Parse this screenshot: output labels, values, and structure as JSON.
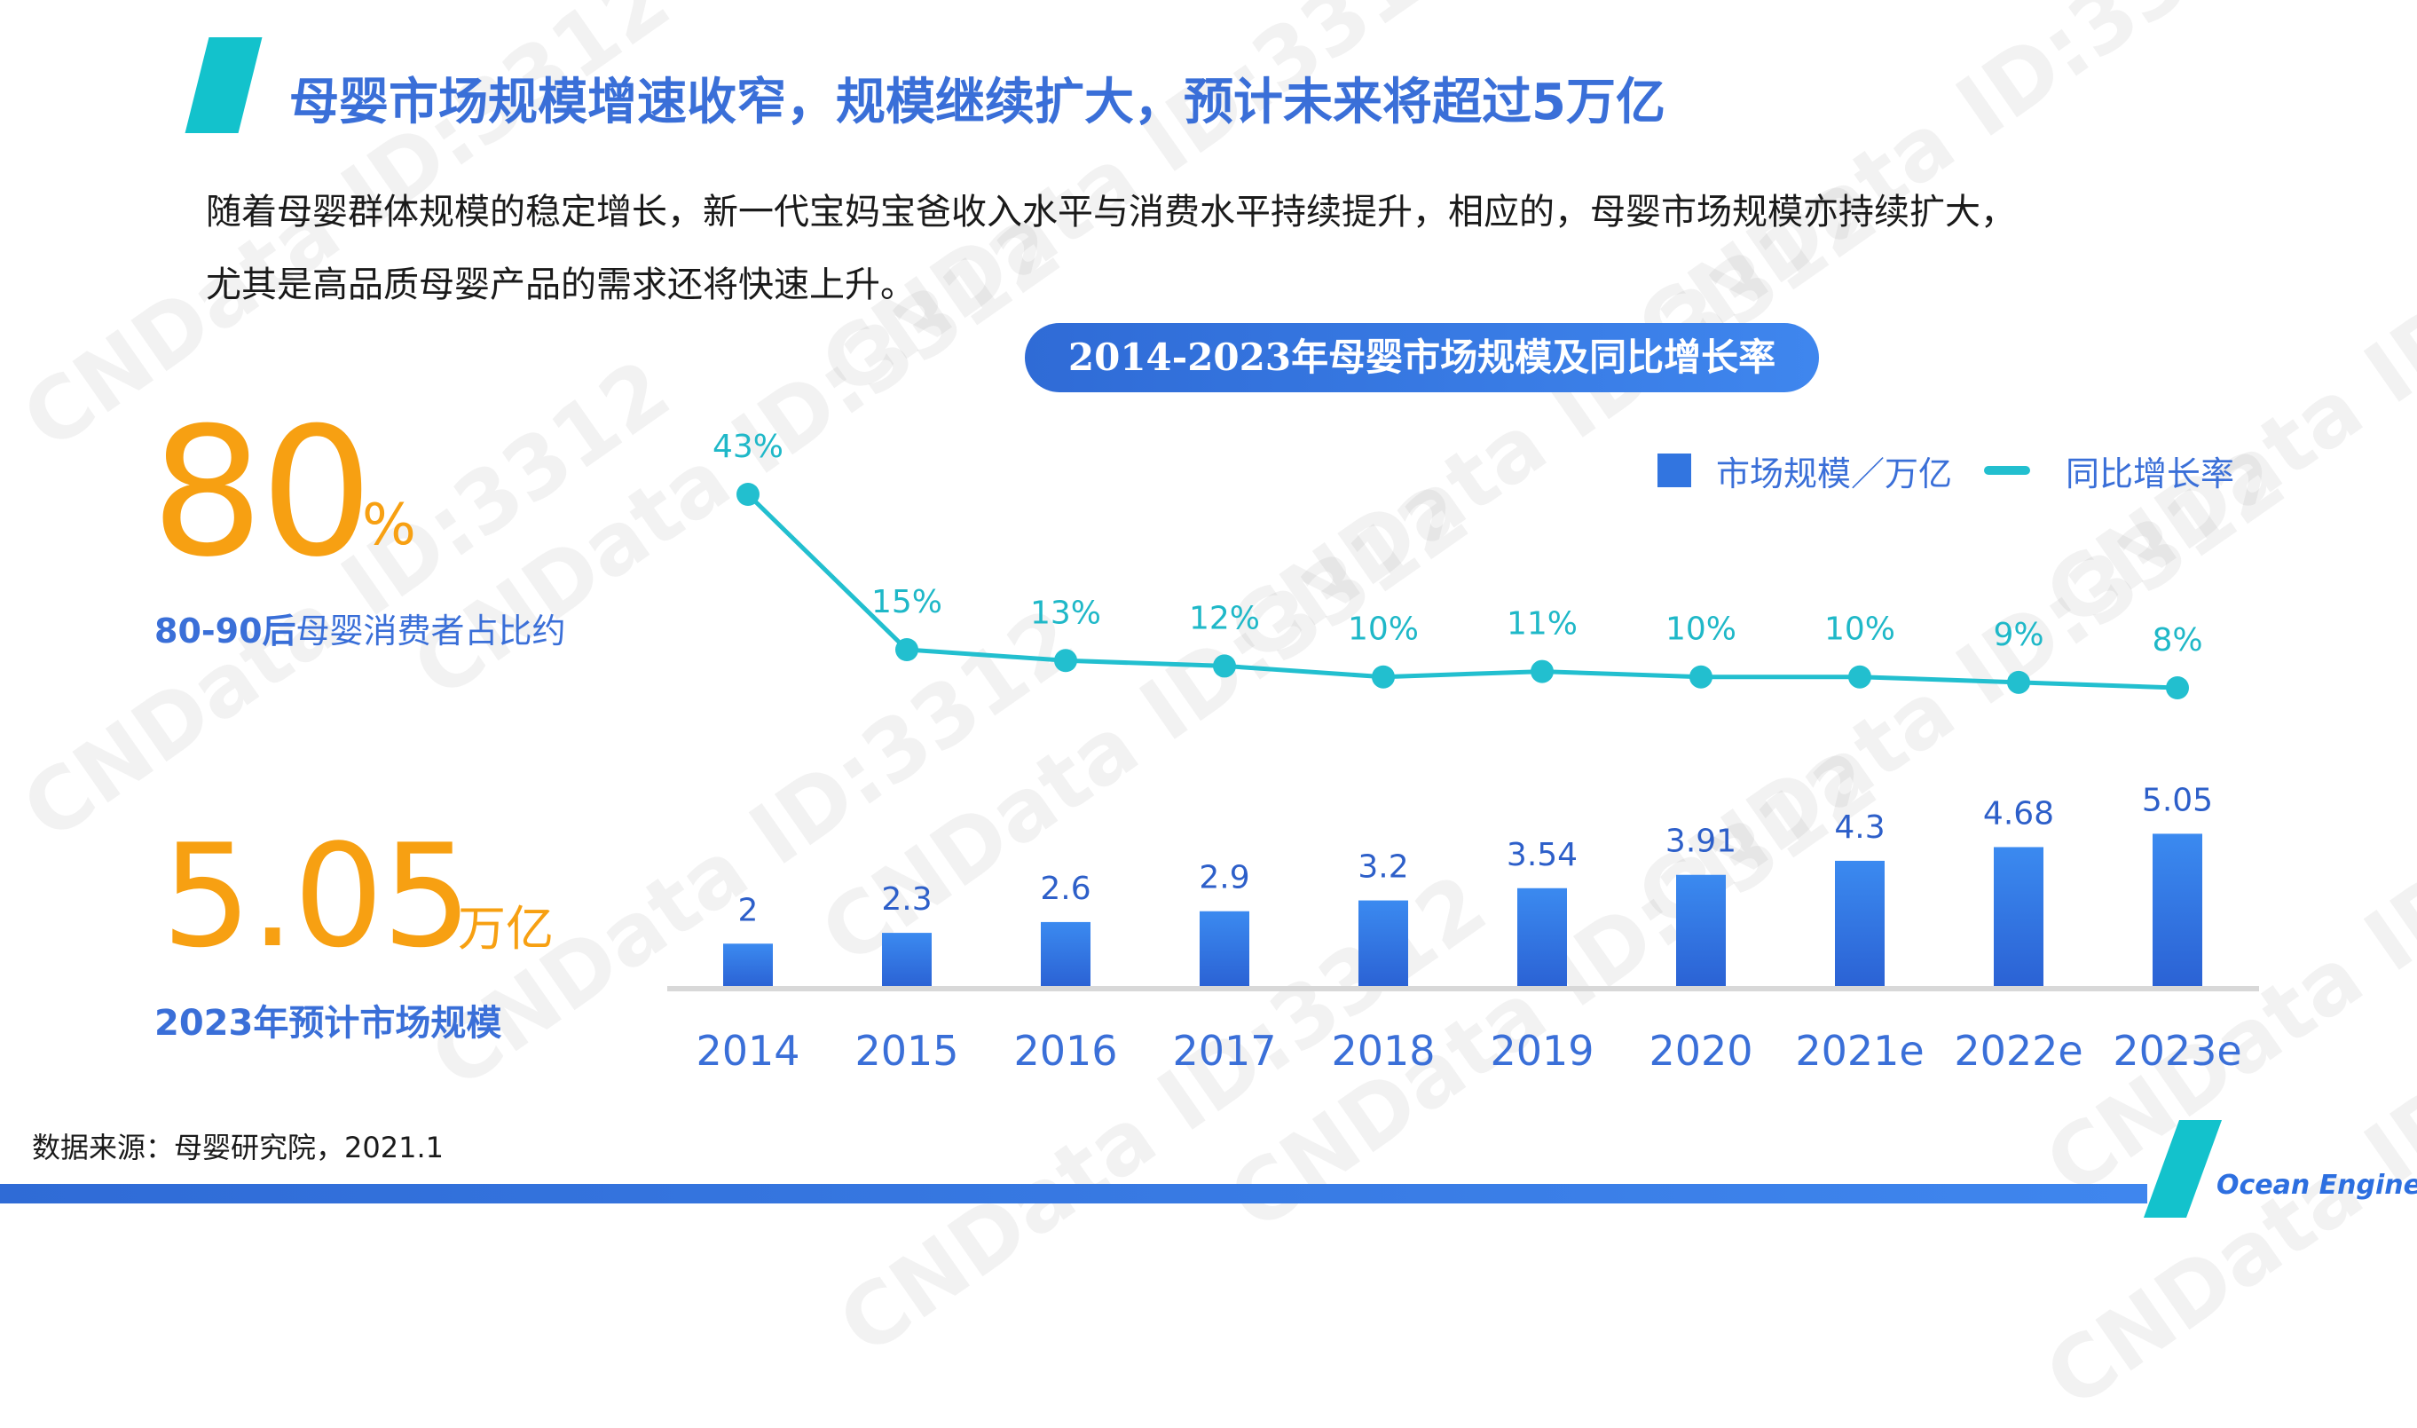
{
  "title": "母婴市场规模增速收窄，规模继续扩大，预计未来将超过5万亿",
  "intro": {
    "line1": "随着母婴群体规模的稳定增长，新一代宝妈宝爸收入水平与消费水平持续提升，相应的，母婴市场规模亦持续扩大，",
    "line2": "尤其是高品质母婴产品的需求还将快速上升。"
  },
  "kpis": {
    "share": {
      "value": "80",
      "unit": "%",
      "caption_bold": "80-90后",
      "caption_rest": "母婴消费者占比约"
    },
    "market": {
      "value": "5.05",
      "unit": "万亿",
      "caption": "2023年预计市场规模"
    }
  },
  "chart_data": {
    "type": "bar+line",
    "title": "2014-2023年母婴市场规模及同比增长率",
    "categories": [
      "2014",
      "2015",
      "2016",
      "2017",
      "2018",
      "2019",
      "2020",
      "2021e",
      "2022e",
      "2023e"
    ],
    "series": [
      {
        "name": "市场规模／万亿",
        "type": "bar",
        "values": [
          2,
          2.3,
          2.6,
          2.9,
          3.2,
          3.54,
          3.91,
          4.3,
          4.68,
          5.05
        ],
        "labels": [
          "2",
          "2.3",
          "2.6",
          "2.9",
          "3.2",
          "3.54",
          "3.91",
          "4.3",
          "4.68",
          "5.05"
        ]
      },
      {
        "name": "同比增长率",
        "type": "line",
        "values": [
          43,
          15,
          13,
          12,
          10,
          11,
          10,
          10,
          9,
          8
        ],
        "labels": [
          "43%",
          "15%",
          "13%",
          "12%",
          "10%",
          "11%",
          "10%",
          "10%",
          "9%",
          "8%"
        ]
      }
    ],
    "legend_position": "top-right",
    "grid": false,
    "colors": {
      "bar": "#3275e0",
      "line": "#22bfcf"
    }
  },
  "legend": {
    "bar_label": "市场规模／万亿",
    "line_label": "同比增长率"
  },
  "source": "数据来源：母婴研究院，2021.1",
  "brand": "Ocean Engine",
  "watermark": "CNData ID:3312"
}
